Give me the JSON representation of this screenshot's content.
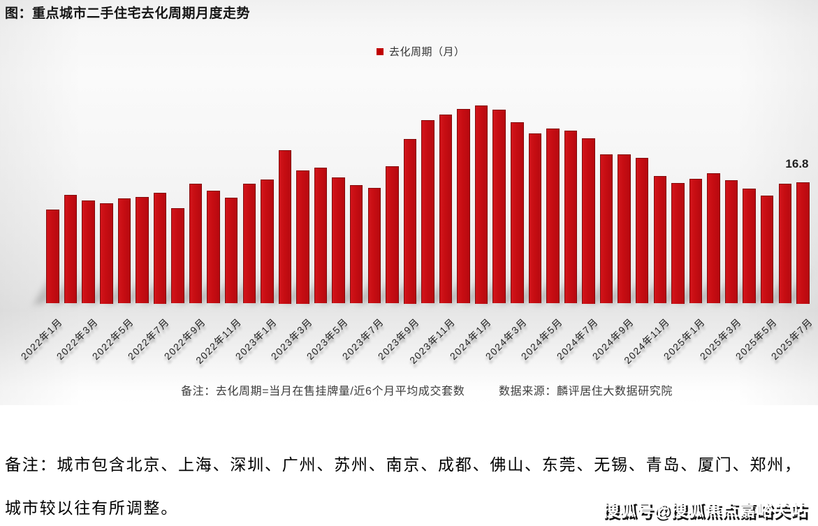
{
  "chart": {
    "title": "图：重点城市二手住宅去化周期月度走势",
    "legend_label": "去化周期（月）",
    "note": "备注：去化周期=当月在售挂牌量/近6个月平均成交套数",
    "source": "数据来源：麟评居住大数据研究院",
    "value_label": "16.8",
    "colors": {
      "bar": "#c60d12",
      "bar_border": "#820a0b",
      "legend_swatch": "#c00000"
    }
  },
  "chart_data": {
    "type": "bar",
    "title": "重点城市二手住宅去化周期月度走势",
    "series_name": "去化周期（月）",
    "categories": [
      "2022年1月",
      "2022年2月",
      "2022年3月",
      "2022年4月",
      "2022年5月",
      "2022年6月",
      "2022年7月",
      "2022年8月",
      "2022年9月",
      "2022年10月",
      "2022年11月",
      "2022年12月",
      "2023年1月",
      "2023年2月",
      "2023年3月",
      "2023年4月",
      "2023年5月",
      "2023年6月",
      "2023年7月",
      "2023年8月",
      "2023年9月",
      "2023年10月",
      "2023年11月",
      "2023年12月",
      "2024年1月",
      "2024年2月",
      "2024年3月",
      "2024年4月",
      "2024年5月",
      "2024年6月",
      "2024年7月",
      "2024年8月",
      "2024年9月",
      "2024年10月",
      "2024年11月",
      "2024年12月",
      "2025年1月",
      "2025年2月",
      "2025年3月",
      "2025年4月",
      "2025年5月",
      "2025年6月",
      "2025年7月"
    ],
    "values": [
      13.0,
      15.1,
      14.3,
      13.9,
      14.6,
      14.8,
      15.4,
      13.2,
      16.6,
      15.6,
      14.7,
      16.6,
      17.2,
      21.3,
      18.5,
      18.8,
      17.5,
      16.4,
      16.0,
      19.0,
      22.8,
      25.4,
      26.2,
      27.0,
      27.5,
      26.9,
      25.1,
      23.6,
      24.3,
      24.0,
      22.9,
      20.7,
      20.7,
      20.2,
      17.7,
      16.7,
      17.3,
      18.1,
      17.1,
      15.9,
      15.0,
      16.6,
      16.8
    ],
    "x_tick_labels": [
      "2022年1月",
      "2022年3月",
      "2022年5月",
      "2022年7月",
      "2022年9月",
      "2022年11月",
      "2023年1月",
      "2023年3月",
      "2023年5月",
      "2023年7月",
      "2023年9月",
      "2023年11月",
      "2024年1月",
      "2024年3月",
      "2024年5月",
      "2024年7月",
      "2024年9月",
      "2024年11月",
      "2025年1月",
      "2025年3月",
      "2025年5月",
      "2025年7月"
    ],
    "annotations": [
      {
        "text": "16.8",
        "category": "2025年7月"
      }
    ],
    "xlabel": "",
    "ylabel": "",
    "ylim": [
      0,
      28
    ],
    "grid": false,
    "legend_position": "top-center"
  },
  "remark": {
    "line1": "备注：城市包含北京、上海、深圳、广州、苏州、南京、成都、佛山、东莞、无锡、青岛、厦门、郑州，",
    "line2": "城市较以往有所调整。"
  },
  "watermark": {
    "text": "搜狐号@搜狐焦点嘉峪关站"
  }
}
